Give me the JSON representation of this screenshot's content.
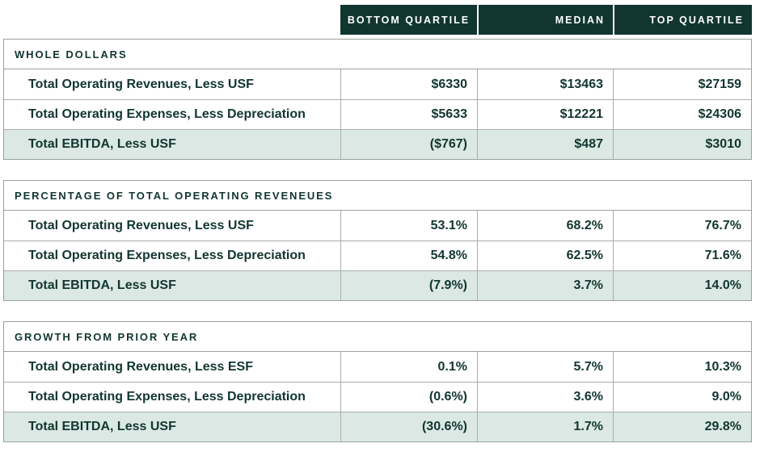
{
  "colors": {
    "header_band_bg": "#113630",
    "header_band_text": "#ffffff",
    "body_text": "#113630",
    "shaded_row_bg": "#dce8e3",
    "border": "#9aa09d",
    "page_bg": "#ffffff"
  },
  "chart_data": {
    "type": "table",
    "columns": [
      "BOTTOM QUARTILE",
      "MEDIAN",
      "TOP QUARTILE"
    ],
    "legend_position": "top",
    "sections": [
      {
        "title": "WHOLE DOLLARS",
        "rows": [
          {
            "label": "Total Operating Revenues, Less USF",
            "values": [
              "$6330",
              "$13463",
              "$27159"
            ],
            "highlight": false
          },
          {
            "label": "Total Operating Expenses, Less Depreciation",
            "values": [
              "$5633",
              "$12221",
              "$24306"
            ],
            "highlight": false
          },
          {
            "label": "Total EBITDA, Less USF",
            "values": [
              "($767)",
              "$487",
              "$3010"
            ],
            "highlight": true
          }
        ]
      },
      {
        "title": "PERCENTAGE OF TOTAL OPERATING REVENEUES",
        "rows": [
          {
            "label": "Total Operating Revenues, Less USF",
            "values": [
              "53.1%",
              "68.2%",
              "76.7%"
            ],
            "highlight": false
          },
          {
            "label": "Total Operating Expenses, Less Depreciation",
            "values": [
              "54.8%",
              "62.5%",
              "71.6%"
            ],
            "highlight": false
          },
          {
            "label": "Total EBITDA, Less USF",
            "values": [
              "(7.9%)",
              "3.7%",
              "14.0%"
            ],
            "highlight": true
          }
        ]
      },
      {
        "title": "GROWTH FROM PRIOR YEAR",
        "rows": [
          {
            "label": "Total Operating Revenues, Less ESF",
            "values": [
              "0.1%",
              "5.7%",
              "10.3%"
            ],
            "highlight": false
          },
          {
            "label": "Total Operating Expenses, Less Depreciation",
            "values": [
              "(0.6%)",
              "3.6%",
              "9.0%"
            ],
            "highlight": false
          },
          {
            "label": "Total EBITDA, Less USF",
            "values": [
              "(30.6%)",
              "1.7%",
              "29.8%"
            ],
            "highlight": true
          }
        ]
      }
    ]
  }
}
